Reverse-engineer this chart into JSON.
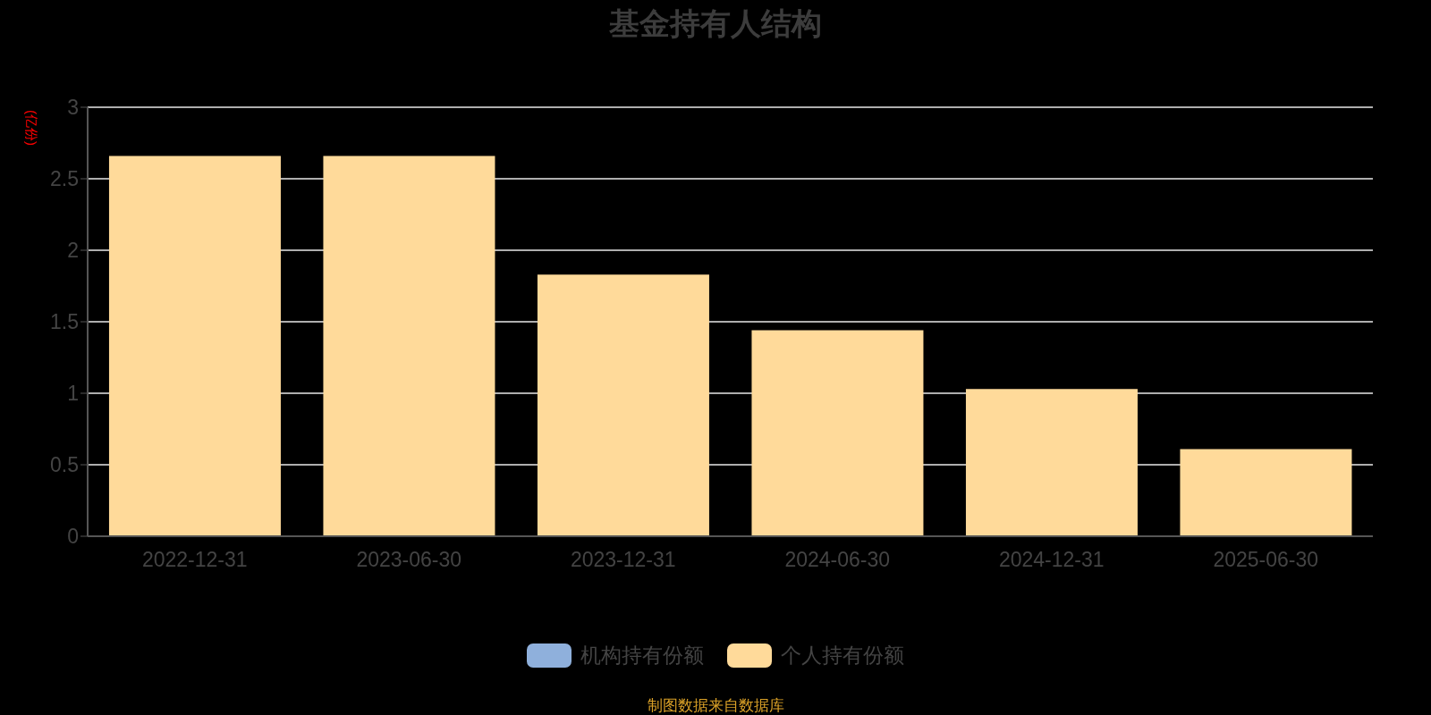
{
  "chart_data": {
    "type": "bar",
    "title": "基金持有人结构",
    "ylabel": "(亿份)",
    "categories": [
      "2022-12-31",
      "2023-06-30",
      "2023-12-31",
      "2024-06-30",
      "2024-12-31",
      "2025-06-30"
    ],
    "series": [
      {
        "name": "机构持有份额",
        "color": "#8fb0dc",
        "values": [
          0,
          0,
          0,
          0,
          0,
          0
        ]
      },
      {
        "name": "个人持有份额",
        "color": "#ffda9a",
        "values": [
          2.66,
          2.66,
          1.83,
          1.44,
          1.03,
          0.61
        ]
      }
    ],
    "stacked": true,
    "ylim": [
      0,
      3
    ],
    "yticks": [
      0,
      0.5,
      1,
      1.5,
      2,
      2.5,
      3
    ],
    "grid": "y",
    "legend": "bottom",
    "annotations": [
      "制图数据来自数据库"
    ]
  }
}
